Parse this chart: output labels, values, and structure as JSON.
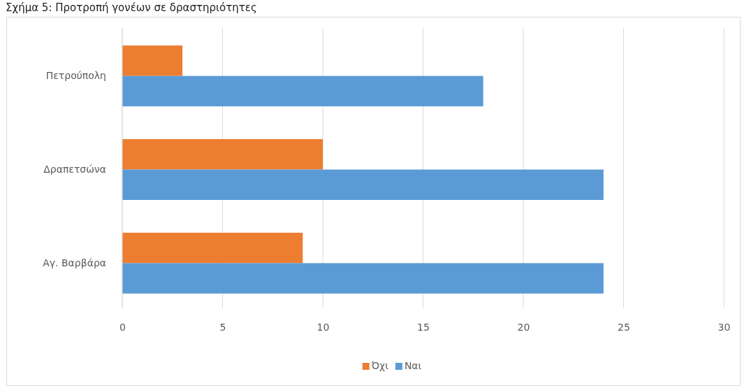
{
  "chart_data": {
    "type": "bar",
    "orientation": "horizontal",
    "title": "Σχήμα 5: Προτροπή γονέων σε δραστηριότητες",
    "categories": [
      "Πετρούπολη",
      "Δραπετσώνα",
      "Αγ. Βαρβάρα"
    ],
    "series": [
      {
        "name": "Όχι",
        "color": "#ed7d31",
        "values": [
          3,
          10,
          9
        ]
      },
      {
        "name": "Ναι",
        "color": "#5b9bd5",
        "values": [
          18,
          24,
          24
        ]
      }
    ],
    "xlim": [
      0,
      30
    ],
    "xticks": [
      0,
      5,
      10,
      15,
      20,
      25,
      30
    ],
    "grid": "x",
    "legend": "bottom"
  }
}
